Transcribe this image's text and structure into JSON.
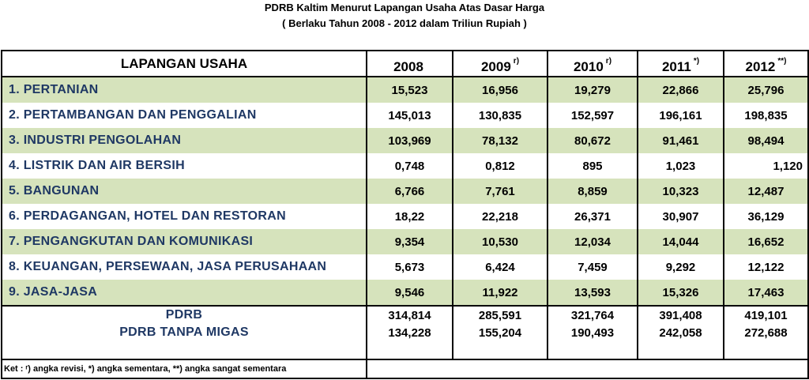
{
  "title": "PDRB Kaltim Menurut Lapangan Usaha Atas Dasar Harga",
  "subtitle": "( Berlaku Tahun 2008 - 2012 dalam Triliun Rupiah )",
  "table": {
    "header": {
      "label": "LAPANGAN USAHA",
      "years": [
        {
          "year": "2008",
          "note": ""
        },
        {
          "year": "2009",
          "note": "r)"
        },
        {
          "year": "2010",
          "note": "r)"
        },
        {
          "year": "2011",
          "note": "*)"
        },
        {
          "year": "2012",
          "note": "**)"
        }
      ]
    },
    "rows": [
      {
        "label": "1.  PERTANIAN",
        "values": [
          "15,523",
          "16,956",
          "19,279",
          "22,866",
          "25,796"
        ]
      },
      {
        "label": "2.  PERTAMBANGAN DAN PENGGALIAN",
        "values": [
          "145,013",
          "130,835",
          "152,597",
          "196,161",
          "198,835"
        ]
      },
      {
        "label": "3.  INDUSTRI PENGOLAHAN",
        "values": [
          "103,969",
          "78,132",
          "80,672",
          "91,461",
          "98,494"
        ]
      },
      {
        "label": "4.  LISTRIK DAN AIR BERSIH",
        "values": [
          "0,748",
          "0,812",
          "895",
          "1,023",
          "1,120"
        ]
      },
      {
        "label": "5.  BANGUNAN",
        "values": [
          "6,766",
          "7,761",
          "8,859",
          "10,323",
          "12,487"
        ]
      },
      {
        "label": "6.  PERDAGANGAN, HOTEL DAN RESTORAN",
        "values": [
          "18,22",
          "22,218",
          "26,371",
          "30,907",
          "36,129"
        ]
      },
      {
        "label": "7.  PENGANGKUTAN DAN KOMUNIKASI",
        "values": [
          "9,354",
          "10,530",
          "12,034",
          "14,044",
          "16,652"
        ]
      },
      {
        "label": "8.  KEUANGAN, PERSEWAAN, JASA PERUSAHAAN",
        "values": [
          "5,673",
          "6,424",
          "7,459",
          "9,292",
          "12,122"
        ]
      },
      {
        "label": "9.  JASA-JASA",
        "values": [
          "9,546",
          "11,922",
          "13,593",
          "15,326",
          "17,463"
        ]
      }
    ],
    "totals": [
      {
        "label": "PDRB",
        "values": [
          "314,814",
          "285,591",
          "321,764",
          "391,408",
          "419,101"
        ]
      },
      {
        "label": "PDRB TANPA MIGAS",
        "values": [
          "134,228",
          "155,204",
          "190,493",
          "242,058",
          "272,688"
        ]
      }
    ],
    "footnote": "Ket :  ʳ) angka revisi, *) angka sementara, **) angka sangat sementara"
  },
  "colors": {
    "row_green": "#d6e3bc",
    "label_text": "#1f3864"
  }
}
